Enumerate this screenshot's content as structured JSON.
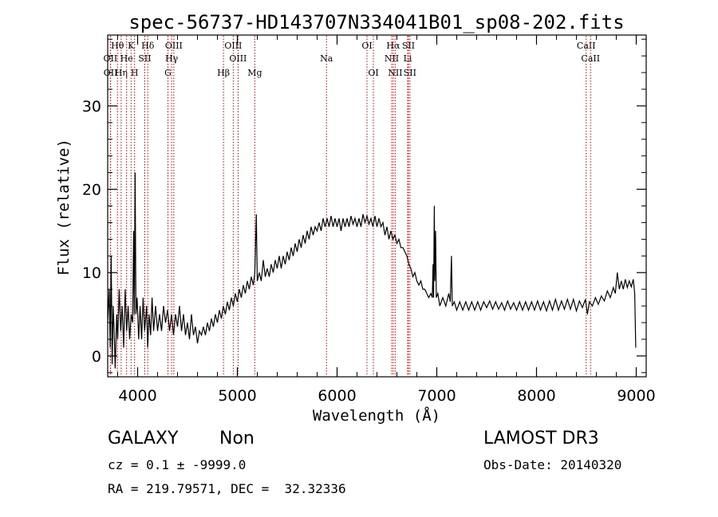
{
  "chart_data": {
    "type": "line",
    "title": "spec-56737-HD143707N334041B01_sp08-202.fits",
    "xlabel": "Wavelength (Å)",
    "ylabel": "Flux (relative)",
    "xlim": [
      3700,
      9100
    ],
    "ylim": [
      -2.5,
      38.5
    ],
    "xticks": [
      4000,
      5000,
      6000,
      7000,
      8000,
      9000
    ],
    "yticks": [
      0,
      10,
      20,
      30
    ],
    "line_color": "#000000",
    "marker_color": "#cc0000",
    "series": [
      {
        "name": "spectrum",
        "points": [
          [
            3700,
            4
          ],
          [
            3715,
            8
          ],
          [
            3725,
            1
          ],
          [
            3735,
            12
          ],
          [
            3745,
            -1
          ],
          [
            3755,
            6
          ],
          [
            3765,
            3
          ],
          [
            3775,
            -1.5
          ],
          [
            3790,
            5
          ],
          [
            3800,
            2
          ],
          [
            3815,
            8
          ],
          [
            3830,
            3
          ],
          [
            3845,
            6
          ],
          [
            3860,
            1
          ],
          [
            3875,
            8
          ],
          [
            3890,
            3
          ],
          [
            3905,
            6
          ],
          [
            3920,
            2
          ],
          [
            3935,
            5
          ],
          [
            3950,
            4
          ],
          [
            3960,
            15
          ],
          [
            3967,
            5
          ],
          [
            3975,
            22
          ],
          [
            3983,
            5
          ],
          [
            3995,
            7
          ],
          [
            4010,
            2
          ],
          [
            4025,
            6
          ],
          [
            4040,
            2
          ],
          [
            4055,
            7
          ],
          [
            4070,
            3
          ],
          [
            4090,
            6
          ],
          [
            4101,
            1
          ],
          [
            4115,
            5
          ],
          [
            4130,
            2.5
          ],
          [
            4145,
            7
          ],
          [
            4160,
            3
          ],
          [
            4180,
            6
          ],
          [
            4200,
            3
          ],
          [
            4220,
            5
          ],
          [
            4240,
            3
          ],
          [
            4260,
            6
          ],
          [
            4280,
            4
          ],
          [
            4300,
            5.5
          ],
          [
            4320,
            3
          ],
          [
            4340,
            5
          ],
          [
            4360,
            2.5
          ],
          [
            4380,
            5
          ],
          [
            4400,
            3.5
          ],
          [
            4420,
            6
          ],
          [
            4440,
            3
          ],
          [
            4460,
            5
          ],
          [
            4480,
            2.5
          ],
          [
            4500,
            4
          ],
          [
            4520,
            2
          ],
          [
            4540,
            5
          ],
          [
            4560,
            2.5
          ],
          [
            4580,
            3.5
          ],
          [
            4600,
            1.5
          ],
          [
            4620,
            3
          ],
          [
            4640,
            2.5
          ],
          [
            4660,
            3.5
          ],
          [
            4680,
            2.5
          ],
          [
            4700,
            4
          ],
          [
            4720,
            3
          ],
          [
            4740,
            4.5
          ],
          [
            4760,
            3.5
          ],
          [
            4780,
            5
          ],
          [
            4800,
            4
          ],
          [
            4820,
            5.5
          ],
          [
            4840,
            4.5
          ],
          [
            4860,
            6
          ],
          [
            4880,
            5
          ],
          [
            4900,
            6.5
          ],
          [
            4920,
            5.5
          ],
          [
            4940,
            7
          ],
          [
            4960,
            6
          ],
          [
            4980,
            7.5
          ],
          [
            5000,
            6.5
          ],
          [
            5020,
            8
          ],
          [
            5040,
            7
          ],
          [
            5060,
            8.5
          ],
          [
            5080,
            7.5
          ],
          [
            5100,
            9
          ],
          [
            5120,
            8
          ],
          [
            5140,
            9.5
          ],
          [
            5160,
            8.5
          ],
          [
            5175,
            10
          ],
          [
            5190,
            17
          ],
          [
            5200,
            9
          ],
          [
            5220,
            10
          ],
          [
            5240,
            9
          ],
          [
            5260,
            11.5
          ],
          [
            5280,
            9.5
          ],
          [
            5300,
            10.5
          ],
          [
            5320,
            9.5
          ],
          [
            5340,
            11
          ],
          [
            5360,
            10
          ],
          [
            5380,
            11.5
          ],
          [
            5400,
            10.5
          ],
          [
            5420,
            12
          ],
          [
            5440,
            10.5
          ],
          [
            5460,
            12
          ],
          [
            5480,
            11
          ],
          [
            5500,
            12.5
          ],
          [
            5520,
            11.5
          ],
          [
            5540,
            13
          ],
          [
            5560,
            12
          ],
          [
            5580,
            13.5
          ],
          [
            5600,
            12.5
          ],
          [
            5620,
            14
          ],
          [
            5640,
            13
          ],
          [
            5660,
            14.5
          ],
          [
            5680,
            13.5
          ],
          [
            5700,
            15
          ],
          [
            5720,
            14
          ],
          [
            5740,
            15.5
          ],
          [
            5760,
            14.5
          ],
          [
            5780,
            15.5
          ],
          [
            5800,
            15
          ],
          [
            5820,
            16
          ],
          [
            5840,
            15
          ],
          [
            5860,
            16.5
          ],
          [
            5880,
            15.5
          ],
          [
            5900,
            16.5
          ],
          [
            5920,
            15.5
          ],
          [
            5940,
            16.8
          ],
          [
            5960,
            15.5
          ],
          [
            5980,
            16.5
          ],
          [
            6000,
            15.5
          ],
          [
            6020,
            16.5
          ],
          [
            6040,
            15
          ],
          [
            6060,
            16.5
          ],
          [
            6080,
            15.5
          ],
          [
            6100,
            16.5
          ],
          [
            6120,
            15.5
          ],
          [
            6140,
            16.8
          ],
          [
            6160,
            15.8
          ],
          [
            6180,
            16.5
          ],
          [
            6200,
            15.5
          ],
          [
            6220,
            16.5
          ],
          [
            6240,
            15.5
          ],
          [
            6260,
            17
          ],
          [
            6280,
            16
          ],
          [
            6300,
            16.8
          ],
          [
            6320,
            15.8
          ],
          [
            6340,
            16.5
          ],
          [
            6360,
            15.5
          ],
          [
            6380,
            16.8
          ],
          [
            6400,
            15.5
          ],
          [
            6420,
            16.5
          ],
          [
            6440,
            15.5
          ],
          [
            6460,
            16
          ],
          [
            6480,
            14.5
          ],
          [
            6500,
            15.5
          ],
          [
            6520,
            14
          ],
          [
            6540,
            15
          ],
          [
            6560,
            14
          ],
          [
            6580,
            14.5
          ],
          [
            6600,
            13.5
          ],
          [
            6620,
            14
          ],
          [
            6640,
            13
          ],
          [
            6660,
            13
          ],
          [
            6680,
            12.5
          ],
          [
            6700,
            12
          ],
          [
            6720,
            11
          ],
          [
            6740,
            10.5
          ],
          [
            6760,
            9.5
          ],
          [
            6780,
            10
          ],
          [
            6800,
            9
          ],
          [
            6820,
            8.5
          ],
          [
            6840,
            9
          ],
          [
            6860,
            8
          ],
          [
            6880,
            8
          ],
          [
            6900,
            7.5
          ],
          [
            6920,
            7
          ],
          [
            6940,
            7.5
          ],
          [
            6955,
            7
          ],
          [
            6962,
            11
          ],
          [
            6968,
            7
          ],
          [
            6975,
            18
          ],
          [
            6980,
            9
          ],
          [
            6988,
            15
          ],
          [
            6995,
            7
          ],
          [
            7010,
            7.5
          ],
          [
            7030,
            6
          ],
          [
            7060,
            7
          ],
          [
            7090,
            6
          ],
          [
            7120,
            7.5
          ],
          [
            7135,
            6.5
          ],
          [
            7147,
            12
          ],
          [
            7155,
            6
          ],
          [
            7175,
            6.5
          ],
          [
            7200,
            5.5
          ],
          [
            7230,
            6.5
          ],
          [
            7260,
            5.5
          ],
          [
            7290,
            6.5
          ],
          [
            7320,
            5.5
          ],
          [
            7350,
            6.5
          ],
          [
            7380,
            5.5
          ],
          [
            7410,
            6.5
          ],
          [
            7440,
            5.5
          ],
          [
            7470,
            6.5
          ],
          [
            7500,
            5.8
          ],
          [
            7530,
            6.6
          ],
          [
            7560,
            5.6
          ],
          [
            7590,
            6.5
          ],
          [
            7620,
            5.6
          ],
          [
            7650,
            6.4
          ],
          [
            7680,
            5.5
          ],
          [
            7710,
            6.6
          ],
          [
            7740,
            5.6
          ],
          [
            7770,
            6.4
          ],
          [
            7800,
            5.5
          ],
          [
            7830,
            6.5
          ],
          [
            7860,
            5.5
          ],
          [
            7890,
            6.5
          ],
          [
            7920,
            5.5
          ],
          [
            7950,
            6.5
          ],
          [
            7980,
            5.5
          ],
          [
            8010,
            6.6
          ],
          [
            8040,
            5.5
          ],
          [
            8070,
            6.5
          ],
          [
            8100,
            5.4
          ],
          [
            8130,
            6.6
          ],
          [
            8160,
            5.5
          ],
          [
            8190,
            6.8
          ],
          [
            8220,
            5.5
          ],
          [
            8250,
            6.6
          ],
          [
            8280,
            5.6
          ],
          [
            8310,
            6.8
          ],
          [
            8340,
            5.6
          ],
          [
            8370,
            6.8
          ],
          [
            8400,
            5.4
          ],
          [
            8430,
            6.6
          ],
          [
            8460,
            5.8
          ],
          [
            8490,
            6.8
          ],
          [
            8510,
            5
          ],
          [
            8530,
            6.5
          ],
          [
            8560,
            6
          ],
          [
            8590,
            7
          ],
          [
            8620,
            6.2
          ],
          [
            8650,
            7.2
          ],
          [
            8680,
            6.6
          ],
          [
            8710,
            7.8
          ],
          [
            8740,
            7
          ],
          [
            8770,
            8.2
          ],
          [
            8790,
            7.5
          ],
          [
            8810,
            10
          ],
          [
            8830,
            8
          ],
          [
            8850,
            9
          ],
          [
            8870,
            8
          ],
          [
            8890,
            9.2
          ],
          [
            8910,
            8.2
          ],
          [
            8930,
            9
          ],
          [
            8950,
            8.3
          ],
          [
            8970,
            9.2
          ],
          [
            8985,
            7.5
          ],
          [
            8995,
            1
          ]
        ]
      }
    ],
    "line_markers": [
      {
        "name": "OII",
        "wavelength": 3727,
        "label_row": 2
      },
      {
        "name": "OII",
        "wavelength": 3729,
        "label_row": 3
      },
      {
        "name": "Hθ",
        "wavelength": 3798,
        "label_row": 1
      },
      {
        "name": "Hη",
        "wavelength": 3835,
        "label_row": 3
      },
      {
        "name": "He",
        "wavelength": 3889,
        "label_row": 2
      },
      {
        "name": "K",
        "wavelength": 3934,
        "label_row": 1
      },
      {
        "name": "H",
        "wavelength": 3969,
        "label_row": 3
      },
      {
        "name": "Hδ",
        "wavelength": 4102,
        "label_row": 1
      },
      {
        "name": "SII",
        "wavelength": 4072,
        "label_row": 2
      },
      {
        "name": "G",
        "wavelength": 4304,
        "label_row": 3
      },
      {
        "name": "OIII",
        "wavelength": 4363,
        "label_row": 1
      },
      {
        "name": "Hγ",
        "wavelength": 4341,
        "label_row": 2
      },
      {
        "name": "Hβ",
        "wavelength": 4861,
        "label_row": 3
      },
      {
        "name": "OIII",
        "wavelength": 4959,
        "label_row": 1
      },
      {
        "name": "OIII",
        "wavelength": 5007,
        "label_row": 2
      },
      {
        "name": "Mg",
        "wavelength": 5175,
        "label_row": 3
      },
      {
        "name": "Na",
        "wavelength": 5894,
        "label_row": 2
      },
      {
        "name": "OI",
        "wavelength": 6300,
        "label_row": 1
      },
      {
        "name": "OI",
        "wavelength": 6364,
        "label_row": 3
      },
      {
        "name": "NII",
        "wavelength": 6548,
        "label_row": 2
      },
      {
        "name": "Hα",
        "wavelength": 6563,
        "label_row": 1
      },
      {
        "name": "NII",
        "wavelength": 6583,
        "label_row": 3
      },
      {
        "name": "SII",
        "wavelength": 6716,
        "label_row": 1
      },
      {
        "name": "Li",
        "wavelength": 6708,
        "label_row": 2
      },
      {
        "name": "SII",
        "wavelength": 6731,
        "label_row": 3
      },
      {
        "name": "CaII",
        "wavelength": 8498,
        "label_row": 1
      },
      {
        "name": "CaII",
        "wavelength": 8542,
        "label_row": 2
      }
    ]
  },
  "info": {
    "object_class": "GALAXY",
    "subclass": "Non",
    "survey": "LAMOST DR3",
    "cz_line": "cz = 0.1 ± -9999.0",
    "obs_date_line": "Obs-Date: 20140320",
    "radec_line": "RA = 219.79571, DEC =  32.32336"
  }
}
